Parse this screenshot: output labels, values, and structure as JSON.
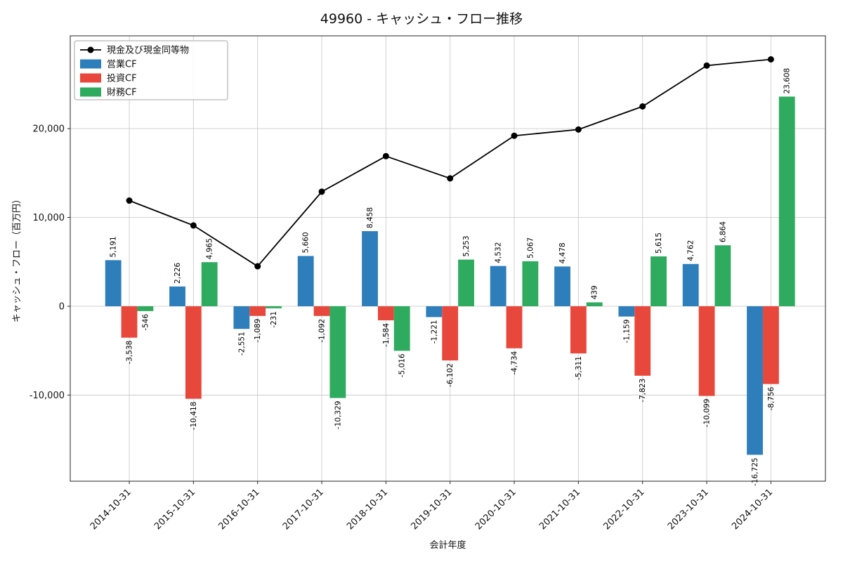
{
  "chart_data": {
    "type": "bar",
    "title": "49960 - キャッシュ・フロー推移",
    "xlabel": "会計年度",
    "ylabel": "キャッシュ・フロー（百万円）",
    "categories": [
      "2014-10-31",
      "2015-10-31",
      "2016-10-31",
      "2017-10-31",
      "2018-10-31",
      "2019-10-31",
      "2020-10-31",
      "2021-10-31",
      "2022-10-31",
      "2023-10-31",
      "2024-10-31"
    ],
    "series": [
      {
        "name": "現金及び現金同等物",
        "style": "line",
        "color": "#000000",
        "values": [
          11900,
          9100,
          4500,
          12900,
          16900,
          14400,
          19200,
          19900,
          22500,
          27100,
          27800
        ]
      },
      {
        "name": "営業CF",
        "style": "bar",
        "color": "#2e7ebc",
        "values": [
          5191,
          2226,
          -2551,
          5660,
          8458,
          -1221,
          4532,
          4478,
          -1159,
          4762,
          -16725
        ]
      },
      {
        "name": "投資CF",
        "style": "bar",
        "color": "#e8483b",
        "values": [
          -3538,
          -10418,
          -1089,
          -1092,
          -1584,
          -6102,
          -4734,
          -5311,
          -7823,
          -10099,
          -8756
        ]
      },
      {
        "name": "財務CF",
        "style": "bar",
        "color": "#2eab5e",
        "values": [
          -546,
          4965,
          -231,
          -10329,
          -5016,
          5253,
          5067,
          439,
          5615,
          6864,
          23608
        ]
      }
    ],
    "yticks": [
      -10000,
      0,
      10000,
      20000
    ],
    "ylim": [
      -19700,
      30450
    ],
    "grid": true,
    "legend_position": "upper left",
    "colors": {
      "grid": "#cccccc",
      "spine": "#262626",
      "legend_border": "#a6a6a6"
    }
  }
}
